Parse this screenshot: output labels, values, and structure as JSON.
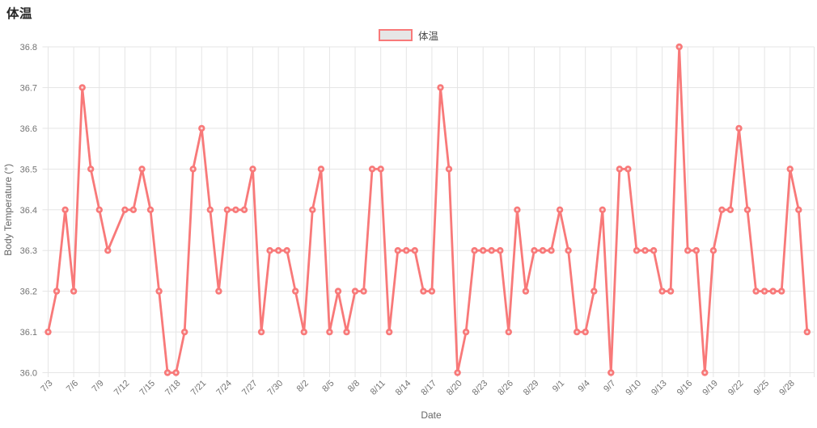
{
  "page": {
    "title": "体温"
  },
  "legend": {
    "label": "体温",
    "swatch_border": "#f87979",
    "swatch_fill": "#e6e6e6"
  },
  "chart_data": {
    "type": "line",
    "title": "体温",
    "xlabel": "Date",
    "ylabel": "Body Temperature  (°)",
    "ylim": [
      36.0,
      36.8
    ],
    "ytick_step": 0.1,
    "grid": true,
    "legend_position": "top",
    "ytick_labels": [
      "36.0",
      "36.1",
      "36.2",
      "36.3",
      "36.4",
      "36.5",
      "36.6",
      "36.7",
      "36.8"
    ],
    "xtick_labels": [
      "7/3",
      "7/6",
      "7/9",
      "7/12",
      "7/15",
      "7/18",
      "7/21",
      "7/24",
      "7/27",
      "7/30",
      "8/2",
      "8/5",
      "8/8",
      "8/11",
      "8/14",
      "8/17",
      "8/20",
      "8/23",
      "8/26",
      "8/29",
      "9/1",
      "9/4",
      "9/7",
      "9/10",
      "9/13",
      "9/16",
      "9/19",
      "9/22",
      "9/25",
      "9/28"
    ],
    "series": [
      {
        "name": "体温",
        "color": "#f87979",
        "x": [
          "7/3",
          "7/4",
          "7/5",
          "7/6",
          "7/7",
          "7/8",
          "7/9",
          "7/10",
          "7/11",
          "7/12",
          "7/13",
          "7/14",
          "7/15",
          "7/16",
          "7/17",
          "7/18",
          "7/19",
          "7/20",
          "7/21",
          "7/22",
          "7/23",
          "7/24",
          "7/25",
          "7/26",
          "7/27",
          "7/28",
          "7/29",
          "7/30",
          "7/31",
          "8/1",
          "8/2",
          "8/3",
          "8/4",
          "8/5",
          "8/6",
          "8/7",
          "8/8",
          "8/9",
          "8/10",
          "8/11",
          "8/12",
          "8/13",
          "8/14",
          "8/15",
          "8/16",
          "8/17",
          "8/18",
          "8/19",
          "8/20",
          "8/21",
          "8/22",
          "8/23",
          "8/24",
          "8/25",
          "8/26",
          "8/27",
          "8/28",
          "8/29",
          "8/30",
          "8/31",
          "9/1",
          "9/2",
          "9/3",
          "9/4",
          "9/5",
          "9/6",
          "9/7",
          "9/8",
          "9/9",
          "9/10",
          "9/11",
          "9/12",
          "9/13",
          "9/14",
          "9/15",
          "9/16",
          "9/17",
          "9/18",
          "9/19",
          "9/20",
          "9/21",
          "9/22",
          "9/23",
          "9/24",
          "9/25",
          "9/26",
          "9/27",
          "9/28",
          "9/29",
          "9/30"
        ],
        "values": [
          36.1,
          36.2,
          36.4,
          36.2,
          36.7,
          36.5,
          36.4,
          36.3,
          null,
          36.4,
          36.4,
          36.5,
          36.4,
          36.2,
          36.0,
          36.0,
          36.1,
          36.5,
          36.6,
          36.4,
          36.2,
          36.4,
          36.4,
          36.4,
          36.5,
          36.1,
          36.3,
          36.3,
          36.3,
          36.2,
          36.1,
          36.4,
          36.5,
          36.1,
          36.2,
          36.1,
          36.2,
          36.2,
          36.5,
          36.5,
          36.1,
          36.3,
          36.3,
          36.3,
          36.2,
          36.2,
          36.7,
          36.5,
          36.0,
          36.1,
          36.3,
          36.3,
          36.3,
          36.3,
          36.1,
          36.4,
          36.2,
          36.3,
          36.3,
          36.3,
          36.4,
          36.3,
          36.1,
          36.1,
          36.2,
          36.4,
          36.0,
          36.5,
          36.5,
          36.3,
          36.3,
          36.3,
          36.2,
          36.2,
          36.8,
          36.3,
          36.3,
          36.0,
          36.3,
          36.4,
          36.4,
          36.6,
          36.4,
          36.2,
          36.2,
          36.2,
          36.2,
          36.5,
          36.4,
          36.1
        ]
      }
    ],
    "colors": {
      "line": "#f87979",
      "grid": "#e5e5e5",
      "tick_text": "#737373",
      "axis_title_text": "#666666",
      "title_text": "#262626",
      "background": "#ffffff"
    }
  }
}
